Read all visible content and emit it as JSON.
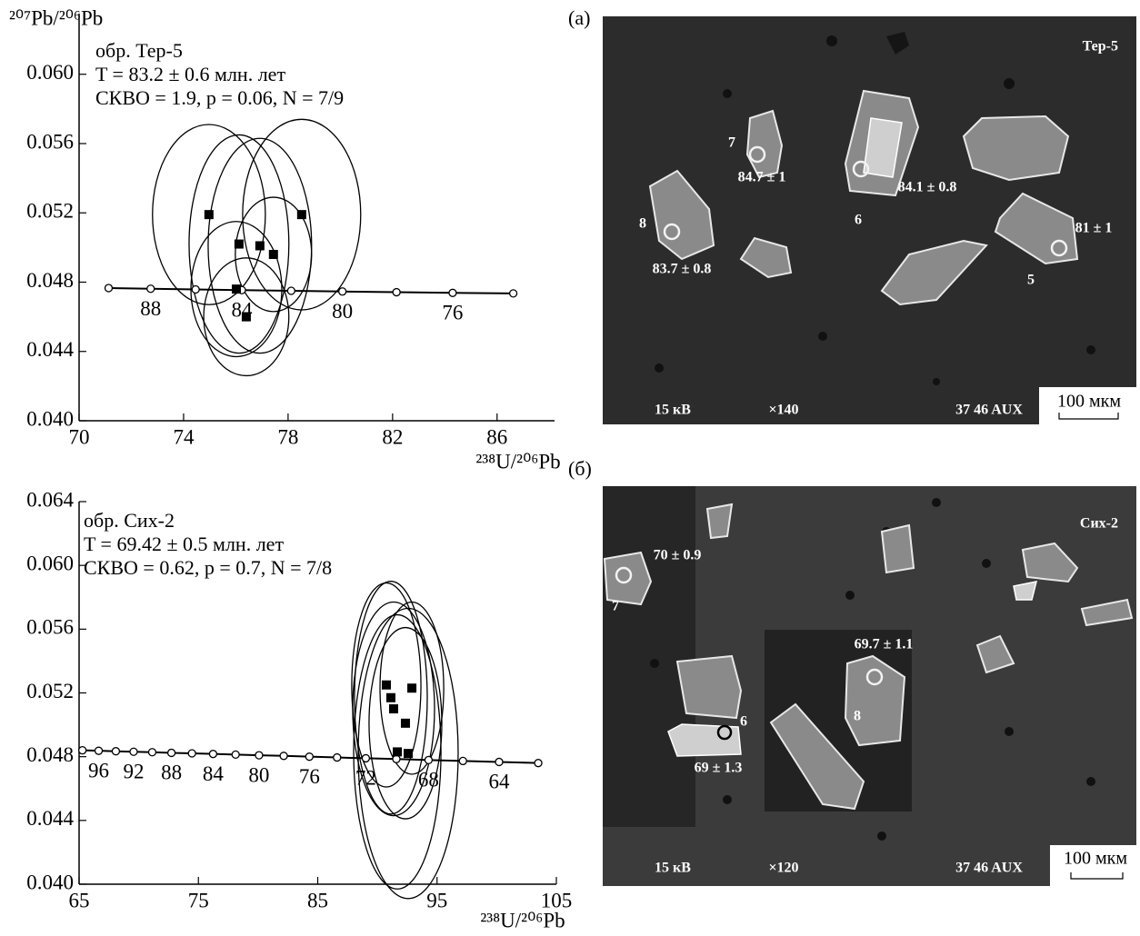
{
  "chart_data": [
    {
      "type": "scatter",
      "y_label": "²⁰⁷Pb/²⁰⁶Pb",
      "x_label": "²³⁸U/²⁰⁶Pb",
      "annotations": [
        "обр. Тер-5",
        "T = 83.2 ± 0.6 млн. лет",
        "СКВО = 1.9, p = 0.06, N = 7/9"
      ],
      "x": [
        74.97,
        76.12,
        76.92,
        77.44,
        78.52,
        76.02,
        76.4
      ],
      "values": [
        0.0519,
        0.0502,
        0.0501,
        0.0496,
        0.0519,
        0.0476,
        0.046
      ],
      "x_errors": [
        2.16,
        1.91,
        1.98,
        1.46,
        2.26,
        1.74,
        1.63
      ],
      "y_errors": [
        0.0052,
        0.0063,
        0.0062,
        0.0033,
        0.0055,
        0.0039,
        0.0034
      ],
      "color": "#000000",
      "concordia": {
        "x": [
          71.13,
          72.74,
          74.46,
          76.23,
          78.12,
          80.08,
          82.15,
          84.3,
          86.62
        ],
        "values": [
          0.04766,
          0.04762,
          0.04758,
          0.04754,
          0.0475,
          0.04746,
          0.04742,
          0.04738,
          0.04735
        ],
        "ages": [
          null,
          88,
          null,
          84,
          null,
          80,
          null,
          76,
          null
        ]
      },
      "xlim": [
        70,
        88.2
      ],
      "xticks": [
        70,
        74,
        78,
        82,
        86
      ],
      "ylim": [
        0.04,
        0.0635
      ],
      "yticks": [
        {
          "value": 0.04,
          "label": "0.040"
        },
        0.044,
        0.048,
        0.052,
        0.056,
        {
          "value": 0.06,
          "label": "0.060"
        }
      ]
    },
    {
      "type": "scatter",
      "x_label": "²³⁸U/²⁰⁶Pb",
      "annotations": [
        "обр. Сих-2",
        "T = 69.42 ± 0.5 млн. лет",
        "СКВО = 0.62, p = 0.7, N = 7/8"
      ],
      "x": [
        90.75,
        92.89,
        91.13,
        91.36,
        92.35,
        91.67,
        92.58
      ],
      "values": [
        0.0525,
        0.0523,
        0.0517,
        0.051,
        0.0501,
        0.0483,
        0.0482
      ],
      "x_errors": [
        2.9,
        2.67,
        3.05,
        3.43,
        3.05,
        3.66,
        4.19
      ],
      "y_errors": [
        0.0064,
        0.0054,
        0.0073,
        0.0067,
        0.006,
        0.0086,
        0.0091
      ],
      "color": "#000000",
      "concordia": {
        "x": [
          65.28,
          66.64,
          68.08,
          69.57,
          71.13,
          72.74,
          74.46,
          76.23,
          78.12,
          80.08,
          82.15,
          84.3,
          86.62,
          89.03,
          91.59,
          94.29,
          97.17,
          100.2,
          103.48
        ],
        "values": [
          0.0484,
          0.04837,
          0.04834,
          0.04831,
          0.04828,
          0.04824,
          0.04821,
          0.04817,
          0.04813,
          0.04809,
          0.04805,
          0.048,
          0.04795,
          0.0479,
          0.04785,
          0.04779,
          0.04773,
          0.04767,
          0.0476
        ],
        "ages": [
          null,
          96,
          null,
          92,
          null,
          88,
          null,
          84,
          null,
          80,
          null,
          76,
          null,
          72,
          null,
          68,
          null,
          64,
          null
        ]
      },
      "xlim": [
        65,
        105
      ],
      "xticks": [
        65,
        75,
        85,
        95,
        105
      ],
      "ylim": [
        0.04,
        0.064
      ],
      "yticks": [
        {
          "value": 0.04,
          "label": "0.040"
        },
        0.044,
        0.048,
        0.052,
        0.056,
        {
          "value": 0.06,
          "label": "0.060"
        },
        0.064
      ]
    }
  ],
  "images": [
    {
      "panel": "(а)",
      "sample": "Тер-5",
      "spots": [
        {
          "number": "7",
          "age": "84.7 ± 1"
        },
        {
          "number": "6",
          "age": "84.1 ± 0.8"
        },
        {
          "number": "8",
          "age": "83.7 ± 0.8"
        },
        {
          "number": "5",
          "age": "81 ± 1"
        }
      ],
      "footer": [
        "15 кВ",
        "×140",
        "37 46 AUX"
      ],
      "scale_bar": "100 мкм"
    },
    {
      "panel": "(б)",
      "sample": "Сих-2",
      "spots": [
        {
          "number": "7",
          "age": "70 ± 0.9"
        },
        {
          "number": "8",
          "age": "69.7 ± 1.1"
        },
        {
          "number": "6",
          "age": "69 ± 1.3"
        }
      ],
      "footer": [
        "15 кВ",
        "×120",
        "37 46 AUX"
      ],
      "scale_bar": "100 мкм"
    }
  ]
}
